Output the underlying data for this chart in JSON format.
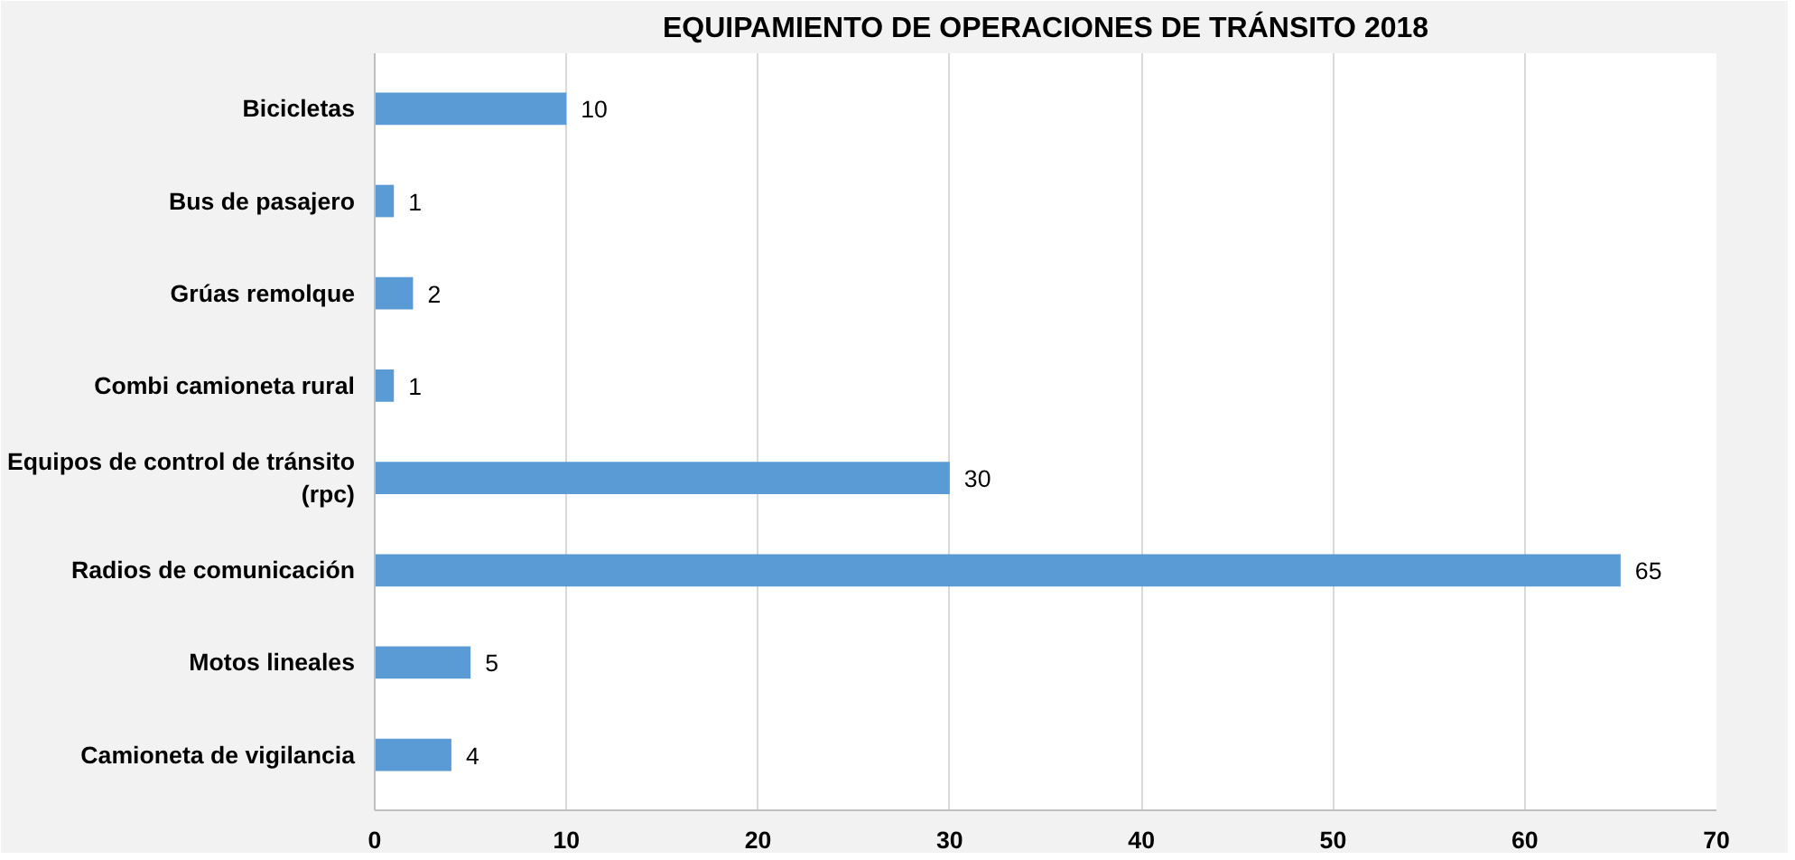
{
  "chart_data": {
    "type": "bar",
    "orientation": "horizontal",
    "title": "EQUIPAMIENTO DE OPERACIONES DE TRÁNSITO 2018",
    "categories": [
      "Bicicletas",
      "Bus de pasajero",
      "Grúas remolque",
      "Combi camioneta rural",
      "Equipos de control de tránsito (rpc)",
      "Radios de comunicación",
      "Motos lineales",
      "Camioneta de vigilancia"
    ],
    "values": [
      10,
      1,
      2,
      1,
      30,
      65,
      5,
      4
    ],
    "color": "#5b9bd5",
    "xlim": [
      0,
      70
    ],
    "xticks": [
      0,
      10,
      20,
      30,
      40,
      50,
      60,
      70
    ],
    "grid": "x",
    "data_labels": true
  }
}
